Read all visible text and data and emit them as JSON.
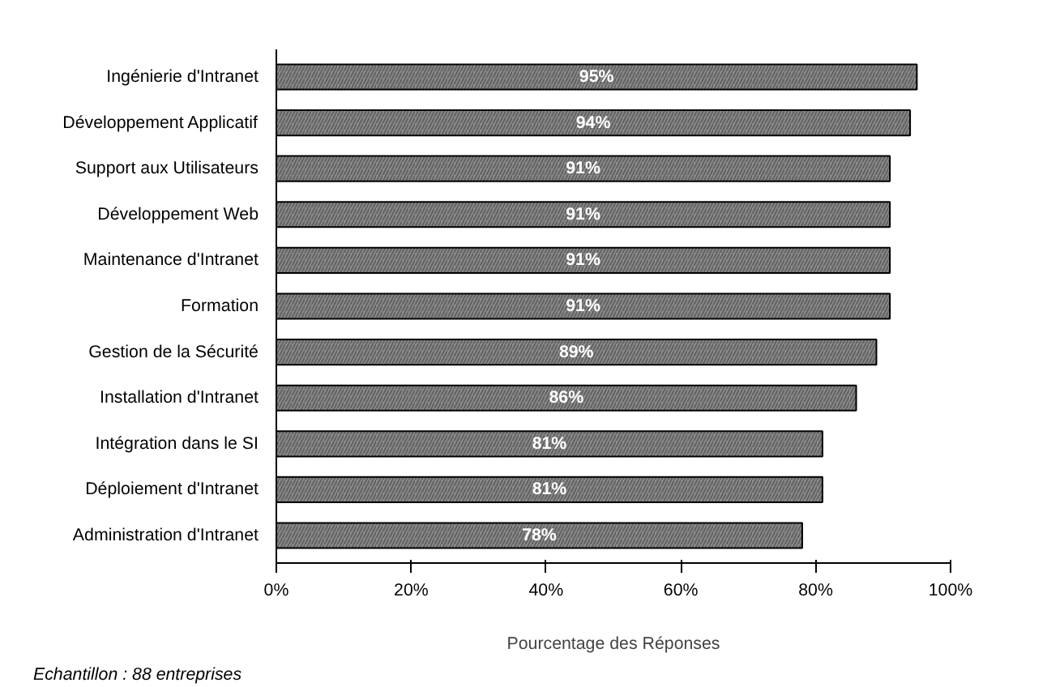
{
  "chart_data": {
    "type": "bar",
    "orientation": "horizontal",
    "categories": [
      "Ingénierie d'Intranet",
      "Développement Applicatif",
      "Support aux Utilisateurs",
      "Développement Web",
      "Maintenance d'Intranet",
      "Formation",
      "Gestion de la Sécurité",
      "Installation d'Intranet",
      "Intégration dans le SI",
      "Déploiement d'Intranet",
      "Administration d'Intranet"
    ],
    "values": [
      95,
      94,
      91,
      91,
      91,
      91,
      89,
      86,
      81,
      81,
      78
    ],
    "value_labels": [
      "95%",
      "94%",
      "91%",
      "91%",
      "91%",
      "91%",
      "89%",
      "86%",
      "81%",
      "81%",
      "78%"
    ],
    "color": "#8c8c8c",
    "xlim": [
      0,
      100
    ],
    "xticks": [
      {
        "value": 0,
        "label": "0%"
      },
      {
        "value": 20,
        "label": "20%"
      },
      {
        "value": 40,
        "label": "40%"
      },
      {
        "value": 60,
        "label": "60%"
      },
      {
        "value": 80,
        "label": "80%"
      },
      {
        "value": 100,
        "label": "100%"
      }
    ],
    "xlabel": "Pourcentage des Réponses",
    "grid": false,
    "annotations": [
      "Echantillon : 88 entreprises"
    ]
  }
}
